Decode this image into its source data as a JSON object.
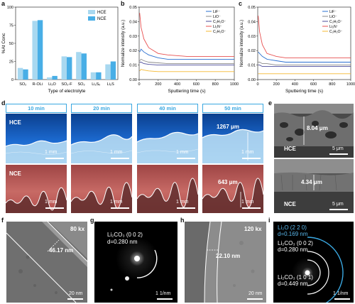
{
  "panels": {
    "a": "a",
    "b": "b",
    "c": "c",
    "d": "d",
    "e": "e",
    "f": "f",
    "g": "g",
    "h": "h",
    "i": "i"
  },
  "colors": {
    "hce": "#a8d8f0",
    "nce": "#48aee6",
    "lif": "#2a6fd0",
    "lio": "#8a8a8a",
    "c2h2o": "#4b4b9a",
    "li2n": "#e85050",
    "c2h2o_neg": "#f5b830",
    "hdr": "#3aa7e0"
  },
  "chart_data": [
    {
      "type": "bar",
      "ylabel": "%At Conc",
      "xlabel": "Type of electrolyte",
      "ylim": [
        0,
        100
      ],
      "yticks": [
        "0",
        "25",
        "50",
        "75",
        "100"
      ],
      "categories": [
        "SO₂",
        "R-OLi",
        "Li₂O",
        "SO₂-F",
        "SO₃",
        "Li₂Sₓ",
        "Li₂S"
      ],
      "legend_position": "top-right",
      "series": [
        {
          "name": "HCE",
          "values": [
            16,
            81,
            3,
            32,
            38,
            10,
            21
          ]
        },
        {
          "name": "NCE",
          "values": [
            14,
            82,
            5,
            31,
            36,
            10,
            25
          ]
        }
      ]
    },
    {
      "type": "line",
      "ylabel": "Normalize intensity (a.u.)",
      "xlabel": "Sputtering time (s)",
      "xlim": [
        0,
        1000
      ],
      "ylim": [
        0,
        0.05
      ],
      "xticks": [
        "0",
        "200",
        "400",
        "600",
        "800",
        "1000"
      ],
      "yticks": [
        "0.00",
        "0.01",
        "0.02",
        "0.03",
        "0.04",
        "0.05"
      ],
      "legend_position": "top-right",
      "series": [
        {
          "name": "LiF⁻",
          "x": [
            5,
            20,
            50,
            100,
            200,
            300,
            500,
            700,
            1000
          ],
          "y": [
            0.019,
            0.021,
            0.019,
            0.017,
            0.015,
            0.014,
            0.014,
            0.014,
            0.014
          ]
        },
        {
          "name": "LiO⁻",
          "x": [
            5,
            20,
            50,
            100,
            200,
            300,
            500,
            700,
            1000
          ],
          "y": [
            0.013,
            0.014,
            0.013,
            0.012,
            0.0115,
            0.011,
            0.011,
            0.011,
            0.011
          ]
        },
        {
          "name": "C₂H₂O⁻",
          "x": [
            5,
            20,
            50,
            100,
            200,
            300,
            500,
            700,
            1000
          ],
          "y": [
            0.012,
            0.012,
            0.011,
            0.0105,
            0.01,
            0.01,
            0.01,
            0.01,
            0.01
          ]
        },
        {
          "name": "Li₂N⁻",
          "x": [
            5,
            20,
            50,
            100,
            200,
            300,
            500,
            700,
            1000
          ],
          "y": [
            0.046,
            0.036,
            0.028,
            0.022,
            0.018,
            0.017,
            0.016,
            0.016,
            0.016
          ]
        },
        {
          "name": "C₂H₂O⁻",
          "x": [
            5,
            20,
            50,
            100,
            200,
            300,
            500,
            700,
            1000
          ],
          "y": [
            0.006,
            0.007,
            0.0065,
            0.006,
            0.0055,
            0.0055,
            0.0055,
            0.0055,
            0.0055
          ]
        }
      ]
    },
    {
      "type": "line",
      "ylabel": "Normalize intensity (a.u.)",
      "xlabel": "Sputtering time (s)",
      "xlim": [
        0,
        1000
      ],
      "ylim": [
        0,
        0.05
      ],
      "xticks": [
        "0",
        "200",
        "400",
        "600",
        "800",
        "1000"
      ],
      "yticks": [
        "0.00",
        "0.01",
        "0.02",
        "0.03",
        "0.04",
        "0.05"
      ],
      "legend_position": "top-right",
      "series": [
        {
          "name": "LiF⁻",
          "x": [
            5,
            20,
            50,
            100,
            200,
            300,
            500,
            700,
            1000
          ],
          "y": [
            0.019,
            0.018,
            0.016,
            0.014,
            0.013,
            0.012,
            0.012,
            0.012,
            0.012
          ]
        },
        {
          "name": "LiO⁻",
          "x": [
            5,
            20,
            50,
            100,
            200,
            300,
            500,
            700,
            1000
          ],
          "y": [
            0.012,
            0.012,
            0.011,
            0.011,
            0.01,
            0.01,
            0.01,
            0.01,
            0.01
          ]
        },
        {
          "name": "C₂H₂O⁻",
          "x": [
            5,
            20,
            50,
            100,
            200,
            300,
            500,
            700,
            1000
          ],
          "y": [
            0.01,
            0.01,
            0.009,
            0.009,
            0.009,
            0.009,
            0.009,
            0.009,
            0.009
          ]
        },
        {
          "name": "Li₂N⁻",
          "x": [
            5,
            20,
            50,
            100,
            200,
            300,
            500,
            700,
            1000
          ],
          "y": [
            0.044,
            0.033,
            0.024,
            0.018,
            0.016,
            0.015,
            0.015,
            0.015,
            0.015
          ]
        },
        {
          "name": "C₂H₂O⁻",
          "x": [
            5,
            20,
            50,
            100,
            200,
            300,
            500,
            700,
            1000
          ],
          "y": [
            0.004,
            0.004,
            0.004,
            0.004,
            0.004,
            0.004,
            0.004,
            0.004,
            0.004
          ]
        }
      ]
    }
  ],
  "d": {
    "times": [
      "10 min",
      "20 min",
      "40 min",
      "50 min"
    ],
    "hce_label": "HCE",
    "nce_label": "NCE",
    "scale": "1 mm",
    "hce_thickness": "1267 μm",
    "nce_thickness": "643 μm"
  },
  "e": {
    "hce_label": "HCE",
    "nce_label": "NCE",
    "hce_thickness": "8.04 μm",
    "nce_thickness": "4.34 μm",
    "scale": "5 μm"
  },
  "f": {
    "mag": "80 kx",
    "thickness": "46.17 nm",
    "scale": "20 nm"
  },
  "g": {
    "line1": "Li₂CO₃ (0 0 2)",
    "line2": "d=0.280 nm",
    "scale": "1 1/nm"
  },
  "h": {
    "mag": "120 kx",
    "thickness": "22.10 nm",
    "scale": "20 nm"
  },
  "i": {
    "r1_line1": "Li₂O (2 2 0)",
    "r1_line2": "d=0.169 nm",
    "r2_line1": "Li₂CO₃ (0 0 2)",
    "r2_line2": "d=0.280 nm",
    "r3_line1": "Li₂CO₃ (1 0 1)",
    "r3_line2": "d=0.449 nm",
    "scale": "1 1/nm"
  }
}
